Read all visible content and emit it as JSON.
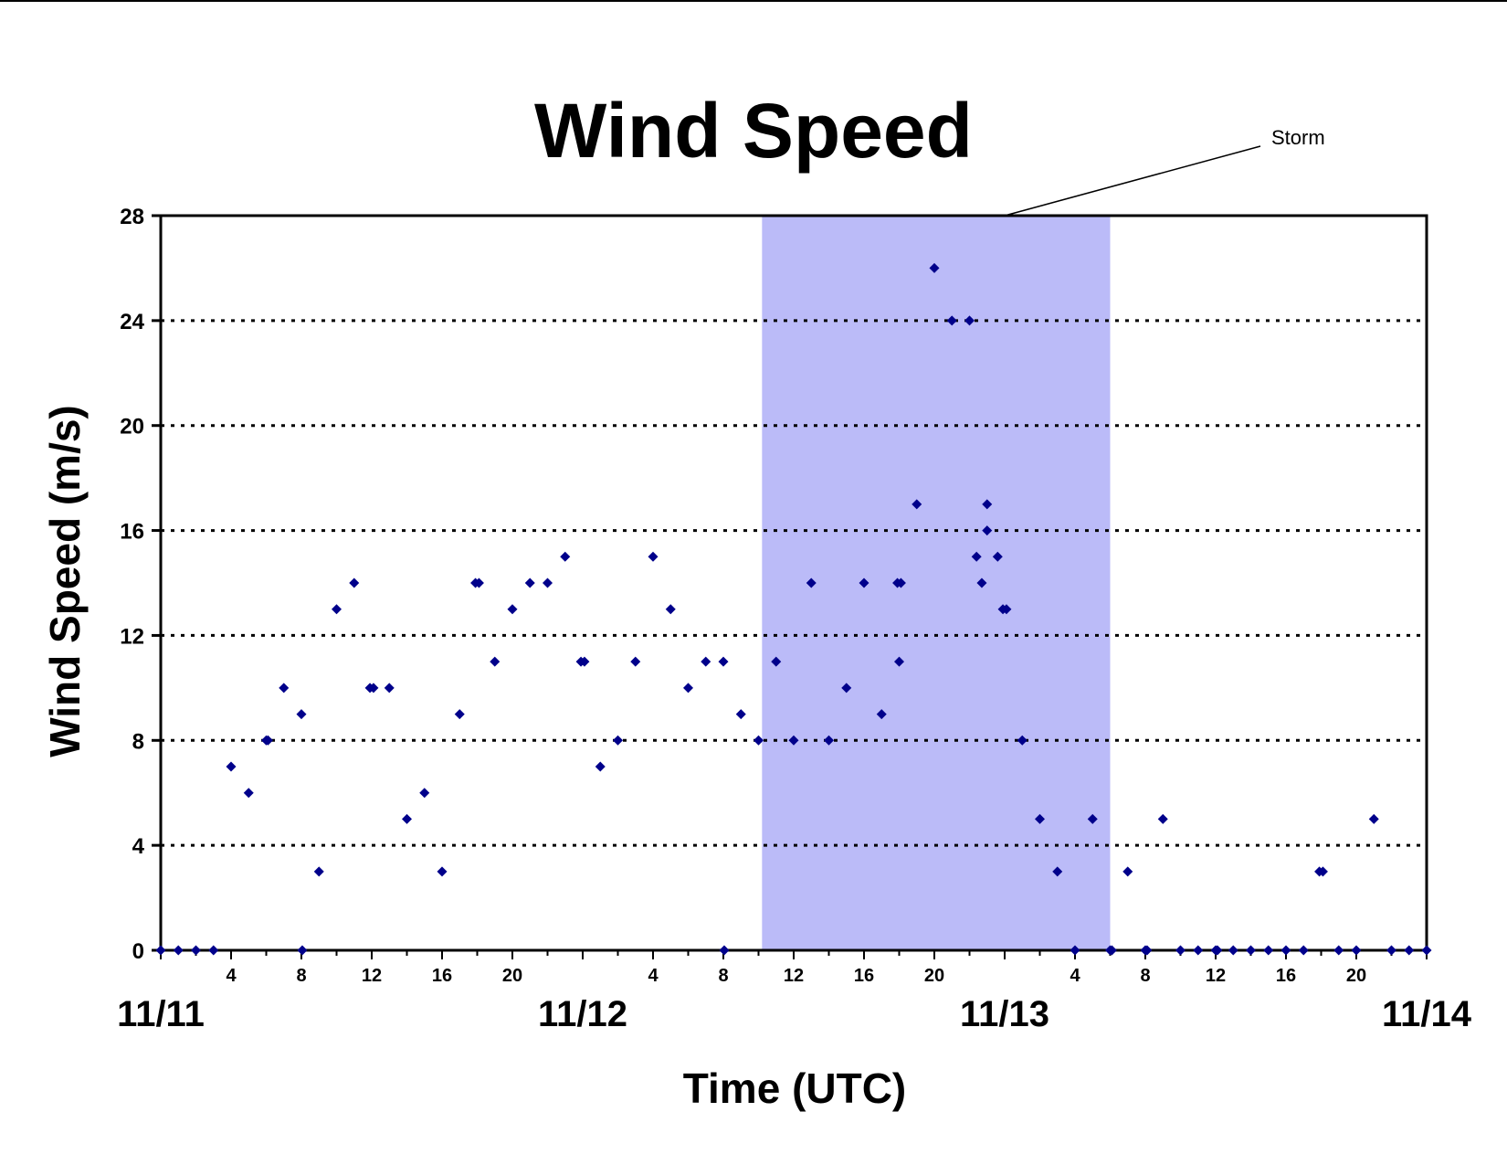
{
  "chart_data": {
    "type": "scatter",
    "title": "Wind Speed",
    "xlabel": "Time (UTC)",
    "ylabel": "Wind Speed (m/s)",
    "x_unit": "hours",
    "xlim": [
      0,
      72
    ],
    "ylim": [
      0,
      28
    ],
    "y_ticks": [
      0,
      4,
      8,
      12,
      16,
      20,
      24,
      28
    ],
    "grid": {
      "horizontal": true,
      "style": "dotted"
    },
    "x_hour_ticks": [
      {
        "hour": 4,
        "label": "4"
      },
      {
        "hour": 8,
        "label": "8"
      },
      {
        "hour": 12,
        "label": "12"
      },
      {
        "hour": 16,
        "label": "16"
      },
      {
        "hour": 20,
        "label": "20"
      },
      {
        "hour": 28,
        "label": "4"
      },
      {
        "hour": 32,
        "label": "8"
      },
      {
        "hour": 36,
        "label": "12"
      },
      {
        "hour": 40,
        "label": "16"
      },
      {
        "hour": 44,
        "label": "20"
      },
      {
        "hour": 52,
        "label": "4"
      },
      {
        "hour": 56,
        "label": "8"
      },
      {
        "hour": 60,
        "label": "12"
      },
      {
        "hour": 64,
        "label": "16"
      },
      {
        "hour": 68,
        "label": "20"
      }
    ],
    "date_labels": [
      {
        "hour": 0,
        "label": "11/11"
      },
      {
        "hour": 24,
        "label": "11/12"
      },
      {
        "hour": 48,
        "label": "11/13"
      },
      {
        "hour": 72,
        "label": "11/14"
      }
    ],
    "annotations": [
      {
        "text": "Storm",
        "type": "shaded-interval",
        "x_start": 34.2,
        "x_end": 54,
        "color": "#bbbbf8"
      }
    ],
    "marker_color": "#00008b",
    "series": [
      {
        "points": [
          [
            0,
            0
          ],
          [
            1,
            0
          ],
          [
            2,
            0
          ],
          [
            3,
            0
          ],
          [
            4,
            7
          ],
          [
            5,
            6
          ],
          [
            6,
            8
          ],
          [
            6.1,
            8
          ],
          [
            7,
            10
          ],
          [
            8,
            9
          ],
          [
            8.05,
            0
          ],
          [
            9,
            3
          ],
          [
            10,
            13
          ],
          [
            11,
            14
          ],
          [
            11.9,
            10
          ],
          [
            12.1,
            10
          ],
          [
            13,
            10
          ],
          [
            14,
            5
          ],
          [
            15,
            6
          ],
          [
            16,
            3
          ],
          [
            17,
            9
          ],
          [
            17.9,
            14
          ],
          [
            18.1,
            14
          ],
          [
            19,
            11
          ],
          [
            20,
            13
          ],
          [
            21,
            14
          ],
          [
            22,
            14
          ],
          [
            23,
            15
          ],
          [
            23.9,
            11
          ],
          [
            24.1,
            11
          ],
          [
            25,
            7
          ],
          [
            26,
            8
          ],
          [
            27,
            11
          ],
          [
            28,
            15
          ],
          [
            29,
            13
          ],
          [
            30,
            10
          ],
          [
            31,
            11
          ],
          [
            32,
            11
          ],
          [
            32.05,
            0
          ],
          [
            33,
            9
          ],
          [
            34,
            8
          ],
          [
            35,
            11
          ],
          [
            36,
            8
          ],
          [
            37,
            14
          ],
          [
            38,
            8
          ],
          [
            39,
            10
          ],
          [
            40,
            14
          ],
          [
            41,
            9
          ],
          [
            41.9,
            14
          ],
          [
            42.1,
            14
          ],
          [
            42,
            11
          ],
          [
            43,
            17
          ],
          [
            44,
            26
          ],
          [
            45,
            24
          ],
          [
            46,
            24
          ],
          [
            46.4,
            15
          ],
          [
            46.7,
            14
          ],
          [
            47,
            17
          ],
          [
            47,
            16
          ],
          [
            47.6,
            15
          ],
          [
            47.9,
            13
          ],
          [
            48.1,
            13
          ],
          [
            49,
            8
          ],
          [
            50,
            5
          ],
          [
            51,
            3
          ],
          [
            52,
            0
          ],
          [
            53,
            5
          ],
          [
            54,
            0
          ],
          [
            54.1,
            0
          ],
          [
            55,
            3
          ],
          [
            56,
            0
          ],
          [
            56.1,
            0
          ],
          [
            57,
            5
          ],
          [
            58,
            0
          ],
          [
            59,
            0
          ],
          [
            60,
            0
          ],
          [
            60.1,
            0
          ],
          [
            61,
            0
          ],
          [
            62,
            0
          ],
          [
            63,
            0
          ],
          [
            64,
            0
          ],
          [
            65,
            0
          ],
          [
            65.9,
            3
          ],
          [
            66.1,
            3
          ],
          [
            67,
            0
          ],
          [
            68,
            0
          ],
          [
            69,
            5
          ],
          [
            70,
            0
          ],
          [
            71,
            0
          ],
          [
            72,
            0
          ]
        ]
      }
    ]
  }
}
